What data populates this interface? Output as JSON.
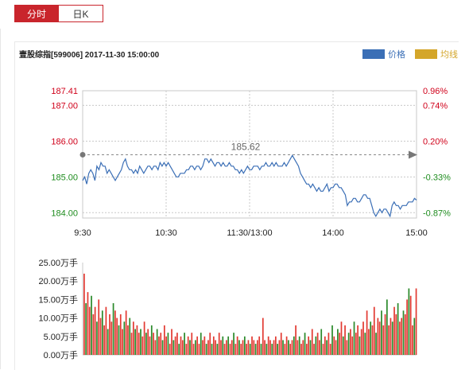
{
  "tabs": [
    {
      "label": "分时",
      "active": true
    },
    {
      "label": "日K",
      "active": false
    }
  ],
  "header": {
    "title": "壹股综指[599006] 2017-11-30 15:00:00"
  },
  "legend": [
    {
      "label": "价格",
      "color": "#3b6fb6",
      "text_color": "#3b6fb6"
    },
    {
      "label": "均线",
      "color": "#d4a62a",
      "text_color": "#d4a62a"
    }
  ],
  "colors": {
    "price_line": "#3b6fb6",
    "up": "#2b8a2b",
    "down": "#e23a32",
    "red_text": "#d0021b",
    "green_text": "#1e8c1e",
    "grid": "#c8c8c8",
    "baseline": "#888888"
  },
  "chart_data": [
    {
      "type": "line",
      "title": "",
      "x_ticks": [
        "9:30",
        "10:30",
        "11:30/13:00",
        "14:00",
        "15:00"
      ],
      "y_ticks_left": [
        {
          "value": 187.41,
          "label": "187.41",
          "tone": "red"
        },
        {
          "value": 187.0,
          "label": "187.00",
          "tone": "red"
        },
        {
          "value": 186.0,
          "label": "186.00",
          "tone": "red"
        },
        {
          "value": 185.0,
          "label": "185.00",
          "tone": "green"
        },
        {
          "value": 184.0,
          "label": "184.00",
          "tone": "green"
        }
      ],
      "y_ticks_right": [
        {
          "value": 187.41,
          "label": "0.96%",
          "tone": "red"
        },
        {
          "value": 187.0,
          "label": "0.74%",
          "tone": "red"
        },
        {
          "value": 186.0,
          "label": "0.20%",
          "tone": "red"
        },
        {
          "value": 185.0,
          "label": "-0.33%",
          "tone": "green"
        },
        {
          "value": 184.0,
          "label": "-0.87%",
          "tone": "green"
        }
      ],
      "ylim": [
        183.85,
        187.41
      ],
      "reference": {
        "value": 185.62,
        "label": "185.62"
      },
      "series": [
        {
          "values": [
            184.9,
            185.0,
            184.8,
            185.1,
            185.2,
            185.1,
            184.9,
            185.3,
            185.2,
            185.4,
            185.3,
            185.3,
            185.1,
            185.2,
            185.1,
            185.0,
            184.9,
            185.0,
            185.1,
            185.2,
            185.4,
            185.5,
            185.3,
            185.2,
            185.2,
            185.1,
            185.2,
            185.1,
            185.3,
            185.2,
            185.1,
            185.2,
            185.3,
            185.3,
            185.2,
            185.3,
            185.3,
            185.2,
            185.4,
            185.3,
            185.4,
            185.3,
            185.4,
            185.3,
            185.2,
            185.1,
            185.0,
            185.0,
            185.1,
            185.1,
            185.1,
            185.2,
            185.2,
            185.3,
            185.3,
            185.2,
            185.3,
            185.3,
            185.2,
            185.3,
            185.5,
            185.5,
            185.4,
            185.5,
            185.4,
            185.3,
            185.4,
            185.4,
            185.3,
            185.4,
            185.3,
            185.3,
            185.4,
            185.3,
            185.3,
            185.2,
            185.2,
            185.1,
            185.2,
            185.1,
            185.2,
            185.3,
            185.2,
            185.2,
            185.3,
            185.3,
            185.3,
            185.2,
            185.3,
            185.3,
            185.4,
            185.3,
            185.3,
            185.4,
            185.3,
            185.4,
            185.3,
            185.3,
            185.3,
            185.4,
            185.3,
            185.4,
            185.5,
            185.6,
            185.5,
            185.4,
            185.3,
            185.1,
            185.0,
            184.9,
            184.8,
            184.8,
            184.7,
            184.8,
            184.7,
            184.6,
            184.7,
            184.6,
            184.6,
            184.7,
            184.8,
            184.6,
            184.7,
            184.7,
            184.8,
            184.8,
            184.7,
            184.7,
            184.6,
            184.5,
            184.2,
            184.3,
            184.3,
            184.4,
            184.4,
            184.3,
            184.3,
            184.4,
            184.5,
            184.5,
            184.4,
            184.4,
            184.2,
            184.0,
            183.9,
            184.0,
            184.1,
            184.0,
            184.1,
            184.1,
            184.0,
            183.9,
            184.2,
            184.3,
            184.2,
            184.2,
            184.1,
            184.2,
            184.2,
            184.2,
            184.3,
            184.3,
            184.3,
            184.4,
            184.35
          ]
        }
      ]
    },
    {
      "type": "bar",
      "title": "",
      "unit": "万手",
      "y_ticks": [
        "25.00万手",
        "20.00万手",
        "15.00万手",
        "10.00万手",
        "5.00万手",
        "0.00万手"
      ],
      "ylim": [
        0,
        25
      ],
      "values": [
        22,
        14,
        17,
        13,
        16,
        11,
        13,
        9,
        15,
        10,
        12,
        8,
        13,
        7,
        11,
        9,
        14,
        12,
        10,
        8,
        11,
        7,
        9,
        12,
        8,
        10,
        6,
        9,
        7,
        8,
        6,
        7,
        5,
        9,
        6,
        7,
        5,
        8,
        6,
        4,
        7,
        5,
        6,
        4,
        8,
        5,
        6,
        3,
        7,
        4,
        5,
        6,
        3,
        5,
        4,
        6,
        3,
        5,
        4,
        6,
        3,
        4,
        5,
        3,
        6,
        4,
        5,
        3,
        4,
        6,
        3,
        5,
        4,
        3,
        6,
        4,
        5,
        3,
        4,
        5,
        3,
        4,
        6,
        3,
        5,
        4,
        3,
        4,
        5,
        3,
        4,
        3,
        5,
        4,
        3,
        4,
        5,
        3,
        10,
        4,
        3,
        5,
        4,
        3,
        4,
        5,
        3,
        4,
        6,
        4,
        3,
        5,
        4,
        3,
        4,
        5,
        8,
        4,
        5,
        3,
        4,
        6,
        3,
        5,
        4,
        7,
        3,
        5,
        6,
        4,
        7,
        3,
        5,
        4,
        6,
        3,
        8,
        5,
        4,
        7,
        6,
        9,
        5,
        8,
        4,
        6,
        7,
        5,
        9,
        6,
        8,
        5,
        7,
        9,
        6,
        12,
        7,
        9,
        8,
        13,
        6,
        10,
        9,
        12,
        8,
        11,
        15,
        8,
        10,
        9,
        13,
        11,
        14,
        9,
        10,
        12,
        11,
        15,
        18,
        16,
        8,
        10,
        18
      ],
      "colors_pattern": "alternating up/down by price change"
    }
  ]
}
